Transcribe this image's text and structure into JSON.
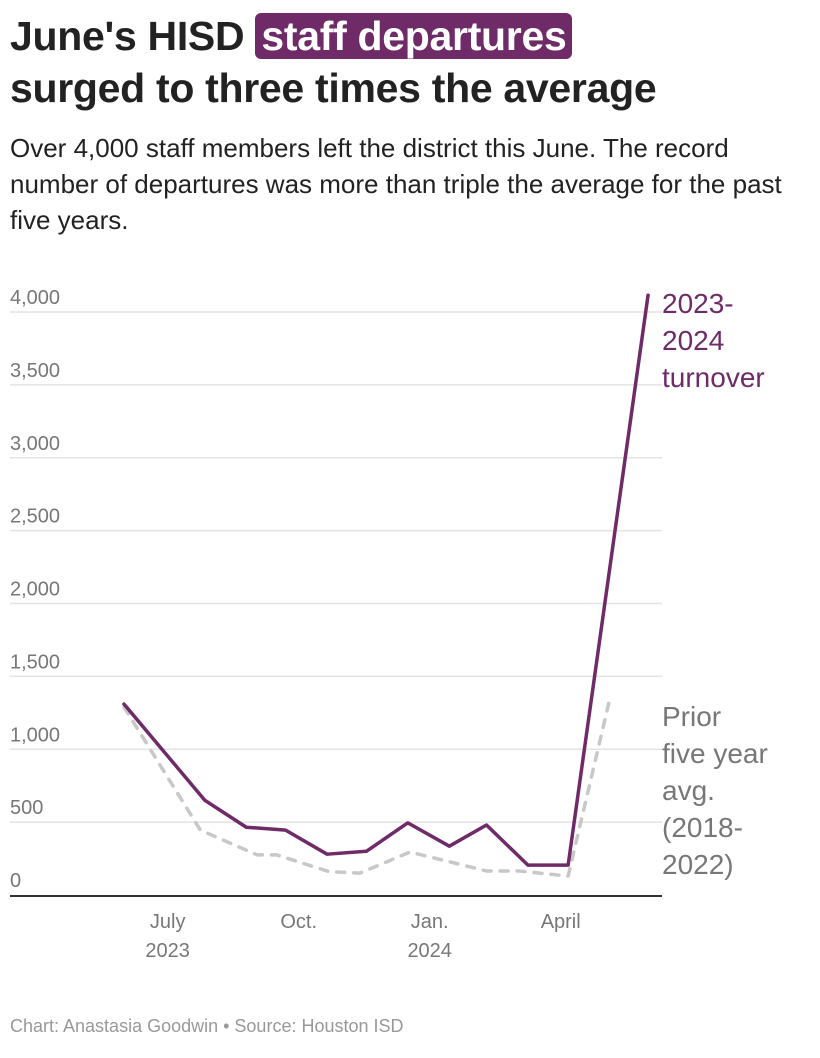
{
  "title": {
    "pre": "June's HISD ",
    "highlight": "staff departures",
    "post": "surged to three times the average"
  },
  "subtitle": "Over 4,000 staff members left the district this June. The record number of departures was more than triple the average for the past five years.",
  "footer": "Chart: Anastasia Goodwin • Source: Houston ISD",
  "colors": {
    "accent": "#6f2a68",
    "avg": "#c8c8c8"
  },
  "chart_data": {
    "type": "line",
    "ylim": [
      0,
      4000
    ],
    "yticks": [
      0,
      500,
      1000,
      1500,
      2000,
      2500,
      3000,
      3500,
      4000
    ],
    "ytick_labels": [
      "0",
      "500",
      "1,000",
      "1,500",
      "2,000",
      "2,500",
      "3,000",
      "3,500",
      "4,000"
    ],
    "x_unit": "months since June 2023",
    "xticks": [
      {
        "x": 1,
        "label": "July",
        "label2": "2023"
      },
      {
        "x": 4,
        "label": "Oct.",
        "label2": ""
      },
      {
        "x": 7,
        "label": "Jan.",
        "label2": "2024"
      },
      {
        "x": 10,
        "label": "April",
        "label2": ""
      }
    ],
    "series": [
      {
        "name": "2023-2024 turnover",
        "label_lines": [
          "2023-",
          "2024",
          "turnover"
        ],
        "x": [
          0,
          1.85,
          2.8,
          3.7,
          4.65,
          5.55,
          6.5,
          7.45,
          8.3,
          9.25,
          10.17,
          12
        ],
        "y": [
          1310,
          650,
          465,
          445,
          280,
          300,
          495,
          335,
          480,
          205,
          205,
          4115
        ]
      },
      {
        "name": "Prior five year avg. (2018-2022)",
        "label_lines": [
          "Prior",
          "five year",
          "avg.",
          "(2018-",
          "2022)"
        ],
        "x": [
          0,
          1.75,
          3.05,
          3.5,
          4.7,
          5.4,
          6.55,
          8.3,
          9.05,
          10.17,
          11.1
        ],
        "y": [
          1290,
          445,
          275,
          275,
          160,
          150,
          295,
          165,
          165,
          130,
          1315
        ]
      }
    ]
  }
}
